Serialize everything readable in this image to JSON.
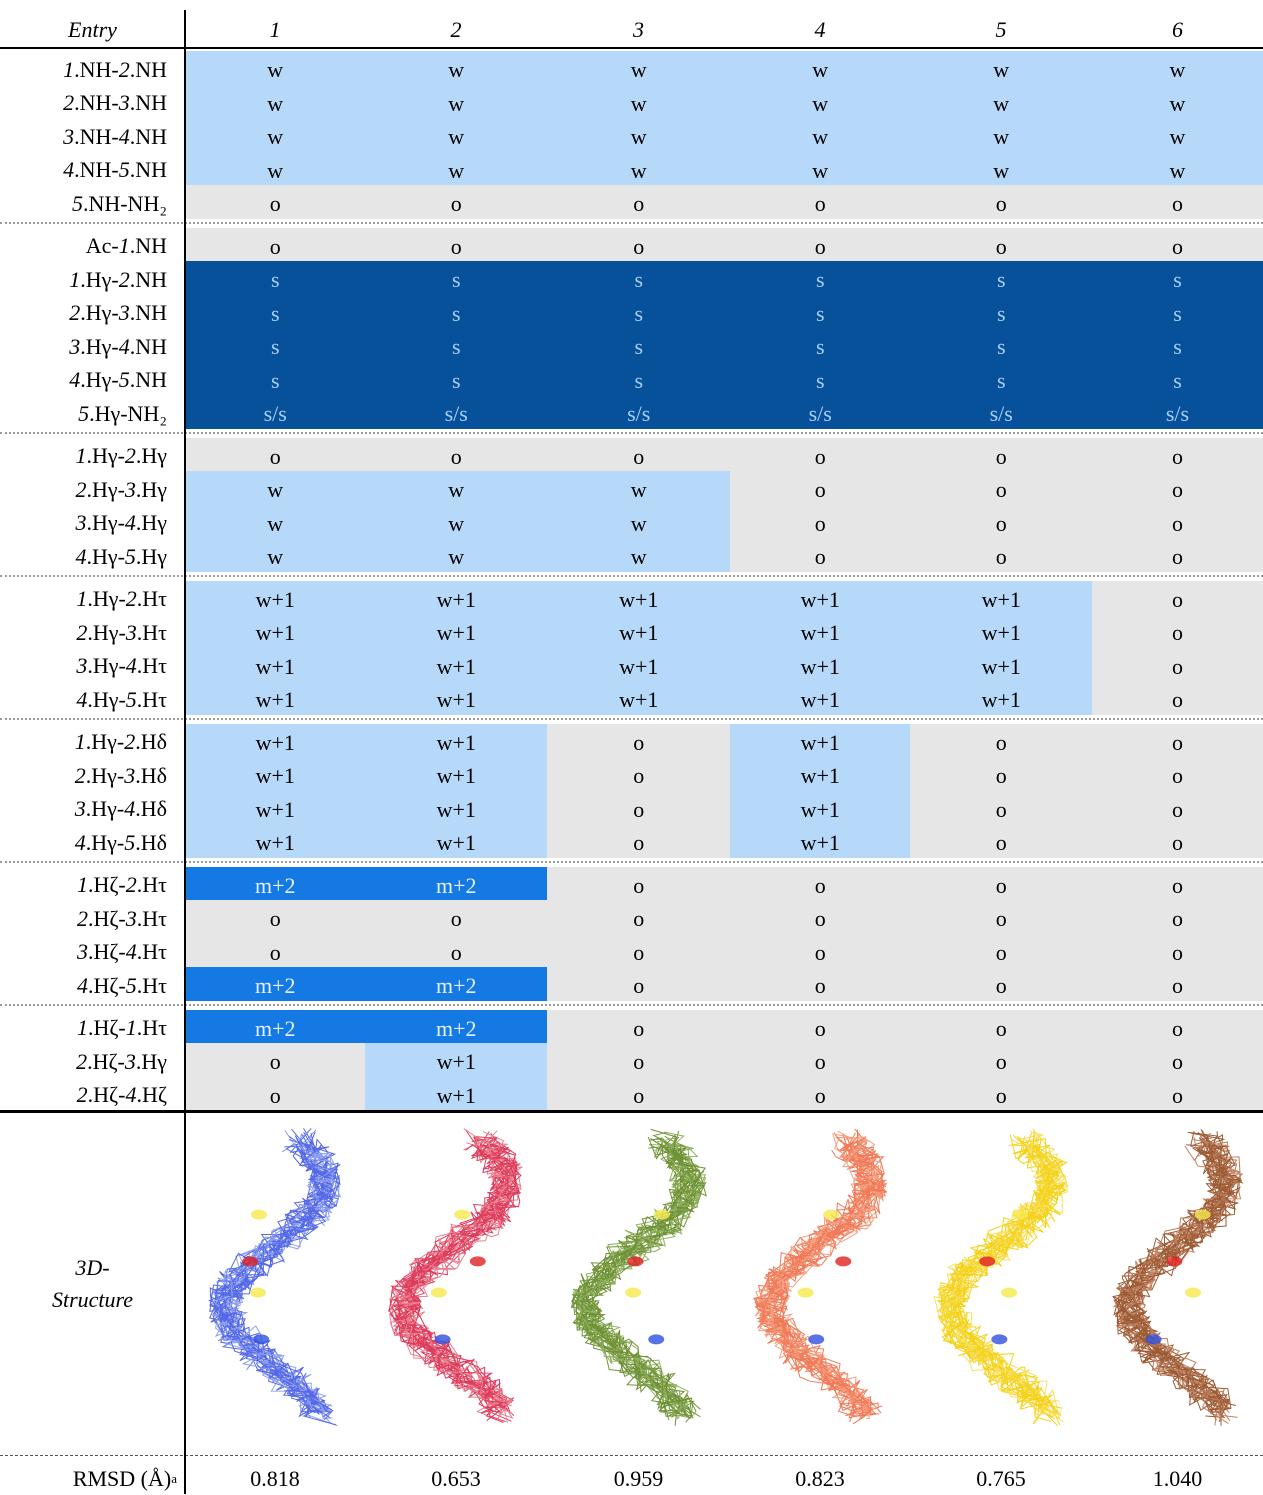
{
  "header": {
    "stub": "Entry",
    "columns": [
      "1",
      "2",
      "3",
      "4",
      "5",
      "6"
    ]
  },
  "groups": [
    {
      "rows": [
        {
          "label": "1.NH-2.NH",
          "cells": [
            "w",
            "w",
            "w",
            "w",
            "w",
            "w"
          ]
        },
        {
          "label": "2.NH-3.NH",
          "cells": [
            "w",
            "w",
            "w",
            "w",
            "w",
            "w"
          ]
        },
        {
          "label": "3.NH-4.NH",
          "cells": [
            "w",
            "w",
            "w",
            "w",
            "w",
            "w"
          ]
        },
        {
          "label": "4.NH-5.NH",
          "cells": [
            "w",
            "w",
            "w",
            "w",
            "w",
            "w"
          ]
        },
        {
          "label": "5.NH-NH₂",
          "cells": [
            "o",
            "o",
            "o",
            "o",
            "o",
            "o"
          ]
        }
      ]
    },
    {
      "rows": [
        {
          "label": "Ac-1.NH",
          "cells": [
            "o",
            "o",
            "o",
            "o",
            "o",
            "o"
          ]
        },
        {
          "label": "1.Hγ-2.NH",
          "cells": [
            "s",
            "s",
            "s",
            "s",
            "s",
            "s"
          ]
        },
        {
          "label": "2.Hγ-3.NH",
          "cells": [
            "s",
            "s",
            "s",
            "s",
            "s",
            "s"
          ]
        },
        {
          "label": "3.Hγ-4.NH",
          "cells": [
            "s",
            "s",
            "s",
            "s",
            "s",
            "s"
          ]
        },
        {
          "label": "4.Hγ-5.NH",
          "cells": [
            "s",
            "s",
            "s",
            "s",
            "s",
            "s"
          ]
        },
        {
          "label": "5.Hγ-NH₂",
          "cells": [
            "s/s",
            "s/s",
            "s/s",
            "s/s",
            "s/s",
            "s/s"
          ]
        }
      ]
    },
    {
      "rows": [
        {
          "label": "1.Hγ-2.Hγ",
          "cells": [
            "o",
            "o",
            "o",
            "o",
            "o",
            "o"
          ]
        },
        {
          "label": "2.Hγ-3.Hγ",
          "cells": [
            "w",
            "w",
            "w",
            "o",
            "o",
            "o"
          ]
        },
        {
          "label": "3.Hγ-4.Hγ",
          "cells": [
            "w",
            "w",
            "w",
            "o",
            "o",
            "o"
          ]
        },
        {
          "label": "4.Hγ-5.Hγ",
          "cells": [
            "w",
            "w",
            "w",
            "o",
            "o",
            "o"
          ]
        }
      ]
    },
    {
      "rows": [
        {
          "label": "1.Hγ-2.Hτ",
          "cells": [
            "w+1",
            "w+1",
            "w+1",
            "w+1",
            "w+1",
            "o"
          ]
        },
        {
          "label": "2.Hγ-3.Hτ",
          "cells": [
            "w+1",
            "w+1",
            "w+1",
            "w+1",
            "w+1",
            "o"
          ]
        },
        {
          "label": "3.Hγ-4.Hτ",
          "cells": [
            "w+1",
            "w+1",
            "w+1",
            "w+1",
            "w+1",
            "o"
          ]
        },
        {
          "label": "4.Hγ-5.Hτ",
          "cells": [
            "w+1",
            "w+1",
            "w+1",
            "w+1",
            "w+1",
            "o"
          ]
        }
      ]
    },
    {
      "rows": [
        {
          "label": "1.Hγ-2.Hδ",
          "cells": [
            "w+1",
            "w+1",
            "o",
            "w+1",
            "o",
            "o"
          ]
        },
        {
          "label": "2.Hγ-3.Hδ",
          "cells": [
            "w+1",
            "w+1",
            "o",
            "w+1",
            "o",
            "o"
          ]
        },
        {
          "label": "3.Hγ-4.Hδ",
          "cells": [
            "w+1",
            "w+1",
            "o",
            "w+1",
            "o",
            "o"
          ]
        },
        {
          "label": "4.Hγ-5.Hδ",
          "cells": [
            "w+1",
            "w+1",
            "o",
            "w+1",
            "o",
            "o"
          ]
        }
      ]
    },
    {
      "rows": [
        {
          "label": "1.Hζ-2.Hτ",
          "cells": [
            "m+2",
            "m+2",
            "o",
            "o",
            "o",
            "o"
          ]
        },
        {
          "label": "2.Hζ-3.Hτ",
          "cells": [
            "o",
            "o",
            "o",
            "o",
            "o",
            "o"
          ]
        },
        {
          "label": "3.Hζ-4.Hτ",
          "cells": [
            "o",
            "o",
            "o",
            "o",
            "o",
            "o"
          ]
        },
        {
          "label": "4.Hζ-5.Hτ",
          "cells": [
            "m+2",
            "m+2",
            "o",
            "o",
            "o",
            "o"
          ]
        }
      ]
    },
    {
      "rows": [
        {
          "label": "1.Hζ-1.Hτ",
          "cells": [
            "m+2",
            "m+2",
            "o",
            "o",
            "o",
            "o"
          ]
        },
        {
          "label": "2.Hζ-3.Hγ",
          "cells": [
            "o",
            "w+1",
            "o",
            "o",
            "o",
            "o"
          ]
        },
        {
          "label": "2.Hζ-4.Hζ",
          "cells": [
            "o",
            "w+1",
            "o",
            "o",
            "o",
            "o"
          ]
        }
      ]
    }
  ],
  "structure_row": {
    "label": "3D-Structure"
  },
  "rmsd_row": {
    "label": "RMSD (Å)",
    "marker": "a",
    "values": [
      "0.818",
      "0.653",
      "0.959",
      "0.823",
      "0.765",
      "1.040"
    ]
  }
}
